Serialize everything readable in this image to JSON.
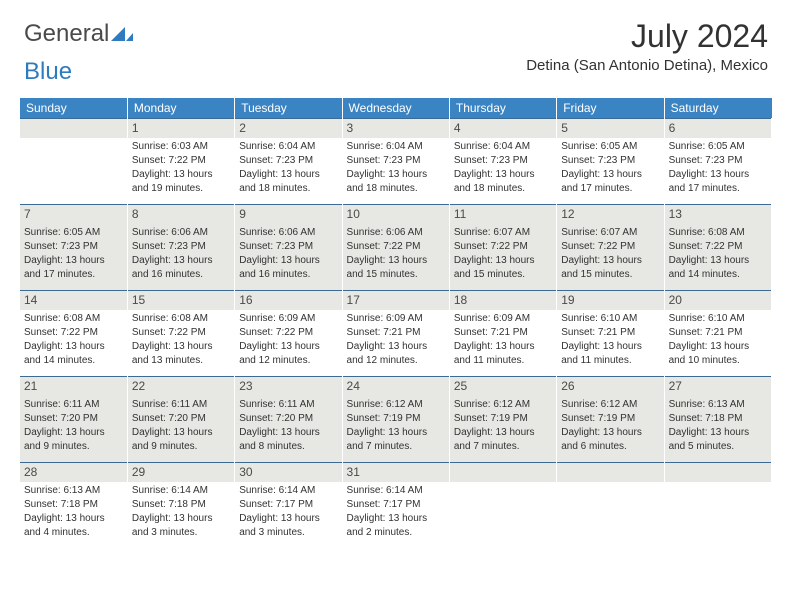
{
  "brand": {
    "part1": "General",
    "part2": "Blue"
  },
  "title": "July 2024",
  "location": "Detina (San Antonio Detina), Mexico",
  "colors": {
    "header_bg": "#3b84c4",
    "header_text": "#ffffff",
    "rule": "#3b6a94",
    "shaded_bg": "#e7e7e4",
    "text": "#323232",
    "brand_blue": "#2f7bbf",
    "brand_gray": "#4a4a4a"
  },
  "day_headers": [
    "Sunday",
    "Monday",
    "Tuesday",
    "Wednesday",
    "Thursday",
    "Friday",
    "Saturday"
  ],
  "first_weekday": 1,
  "days": [
    {
      "n": 1,
      "sr": "6:03 AM",
      "ss": "7:22 PM",
      "dl": "13 hours and 19 minutes."
    },
    {
      "n": 2,
      "sr": "6:04 AM",
      "ss": "7:23 PM",
      "dl": "13 hours and 18 minutes."
    },
    {
      "n": 3,
      "sr": "6:04 AM",
      "ss": "7:23 PM",
      "dl": "13 hours and 18 minutes."
    },
    {
      "n": 4,
      "sr": "6:04 AM",
      "ss": "7:23 PM",
      "dl": "13 hours and 18 minutes."
    },
    {
      "n": 5,
      "sr": "6:05 AM",
      "ss": "7:23 PM",
      "dl": "13 hours and 17 minutes."
    },
    {
      "n": 6,
      "sr": "6:05 AM",
      "ss": "7:23 PM",
      "dl": "13 hours and 17 minutes."
    },
    {
      "n": 7,
      "sr": "6:05 AM",
      "ss": "7:23 PM",
      "dl": "13 hours and 17 minutes."
    },
    {
      "n": 8,
      "sr": "6:06 AM",
      "ss": "7:23 PM",
      "dl": "13 hours and 16 minutes."
    },
    {
      "n": 9,
      "sr": "6:06 AM",
      "ss": "7:23 PM",
      "dl": "13 hours and 16 minutes."
    },
    {
      "n": 10,
      "sr": "6:06 AM",
      "ss": "7:22 PM",
      "dl": "13 hours and 15 minutes."
    },
    {
      "n": 11,
      "sr": "6:07 AM",
      "ss": "7:22 PM",
      "dl": "13 hours and 15 minutes."
    },
    {
      "n": 12,
      "sr": "6:07 AM",
      "ss": "7:22 PM",
      "dl": "13 hours and 15 minutes."
    },
    {
      "n": 13,
      "sr": "6:08 AM",
      "ss": "7:22 PM",
      "dl": "13 hours and 14 minutes."
    },
    {
      "n": 14,
      "sr": "6:08 AM",
      "ss": "7:22 PM",
      "dl": "13 hours and 14 minutes."
    },
    {
      "n": 15,
      "sr": "6:08 AM",
      "ss": "7:22 PM",
      "dl": "13 hours and 13 minutes."
    },
    {
      "n": 16,
      "sr": "6:09 AM",
      "ss": "7:22 PM",
      "dl": "13 hours and 12 minutes."
    },
    {
      "n": 17,
      "sr": "6:09 AM",
      "ss": "7:21 PM",
      "dl": "13 hours and 12 minutes."
    },
    {
      "n": 18,
      "sr": "6:09 AM",
      "ss": "7:21 PM",
      "dl": "13 hours and 11 minutes."
    },
    {
      "n": 19,
      "sr": "6:10 AM",
      "ss": "7:21 PM",
      "dl": "13 hours and 11 minutes."
    },
    {
      "n": 20,
      "sr": "6:10 AM",
      "ss": "7:21 PM",
      "dl": "13 hours and 10 minutes."
    },
    {
      "n": 21,
      "sr": "6:11 AM",
      "ss": "7:20 PM",
      "dl": "13 hours and 9 minutes."
    },
    {
      "n": 22,
      "sr": "6:11 AM",
      "ss": "7:20 PM",
      "dl": "13 hours and 9 minutes."
    },
    {
      "n": 23,
      "sr": "6:11 AM",
      "ss": "7:20 PM",
      "dl": "13 hours and 8 minutes."
    },
    {
      "n": 24,
      "sr": "6:12 AM",
      "ss": "7:19 PM",
      "dl": "13 hours and 7 minutes."
    },
    {
      "n": 25,
      "sr": "6:12 AM",
      "ss": "7:19 PM",
      "dl": "13 hours and 7 minutes."
    },
    {
      "n": 26,
      "sr": "6:12 AM",
      "ss": "7:19 PM",
      "dl": "13 hours and 6 minutes."
    },
    {
      "n": 27,
      "sr": "6:13 AM",
      "ss": "7:18 PM",
      "dl": "13 hours and 5 minutes."
    },
    {
      "n": 28,
      "sr": "6:13 AM",
      "ss": "7:18 PM",
      "dl": "13 hours and 4 minutes."
    },
    {
      "n": 29,
      "sr": "6:14 AM",
      "ss": "7:18 PM",
      "dl": "13 hours and 3 minutes."
    },
    {
      "n": 30,
      "sr": "6:14 AM",
      "ss": "7:17 PM",
      "dl": "13 hours and 3 minutes."
    },
    {
      "n": 31,
      "sr": "6:14 AM",
      "ss": "7:17 PM",
      "dl": "13 hours and 2 minutes."
    }
  ],
  "labels": {
    "sunrise": "Sunrise:",
    "sunset": "Sunset:",
    "daylight": "Daylight:"
  }
}
